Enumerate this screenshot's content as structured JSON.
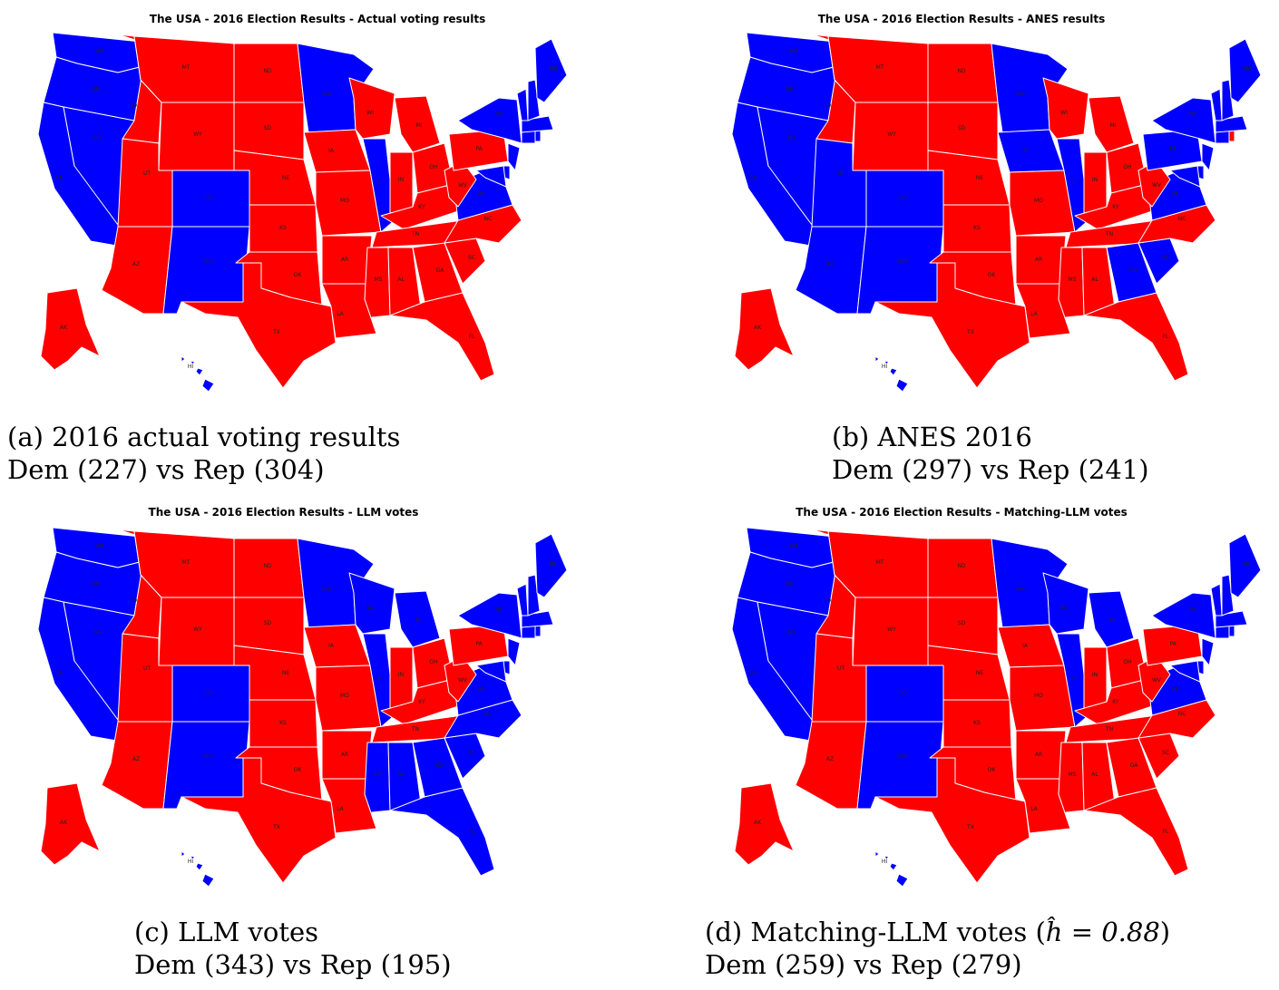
{
  "colors": {
    "dem": "#0000ff",
    "rep": "#ff0000",
    "border": "#ffffff"
  },
  "panels": [
    {
      "title": "The USA - 2016 Election Results - Actual voting results",
      "caption_line1": "(a) 2016 actual voting results",
      "caption_line2": "Dem (227) vs Rep (304)",
      "dem_votes": 227,
      "rep_votes": 304,
      "dem_states": [
        "WA",
        "OR",
        "CA",
        "NV",
        "CO",
        "NM",
        "MN",
        "IL",
        "VA",
        "NY",
        "ME",
        "VT",
        "NH",
        "MA",
        "CT",
        "RI",
        "NJ",
        "DE",
        "MD",
        "HI"
      ]
    },
    {
      "title": "The USA - 2016 Election Results - ANES results",
      "caption_line1": "(b) ANES 2016",
      "caption_line2": "Dem (297) vs Rep (241)",
      "dem_votes": 297,
      "rep_votes": 241,
      "dem_states": [
        "WA",
        "OR",
        "CA",
        "NV",
        "UT",
        "AZ",
        "CO",
        "NM",
        "MN",
        "IA",
        "IL",
        "VA",
        "GA",
        "SC",
        "NY",
        "PA",
        "ME",
        "VT",
        "NH",
        "MA",
        "CT",
        "NJ",
        "DE",
        "MD",
        "HI"
      ]
    },
    {
      "title": "The USA - 2016 Election Results - LLM votes",
      "caption_line1": "(c) LLM votes",
      "caption_line2": "Dem (343) vs Rep (195)",
      "dem_votes": 343,
      "rep_votes": 195,
      "dem_states": [
        "WA",
        "OR",
        "CA",
        "NV",
        "CO",
        "NM",
        "MN",
        "WI",
        "MI",
        "IL",
        "VA",
        "NC",
        "SC",
        "GA",
        "AL",
        "MS",
        "FL",
        "NY",
        "ME",
        "VT",
        "NH",
        "MA",
        "CT",
        "RI",
        "NJ",
        "DE",
        "MD",
        "HI"
      ]
    },
    {
      "title": "The USA - 2016 Election Results - Matching-LLM votes",
      "caption_line1": "(d) Matching-LLM votes",
      "caption_line2": "Dem (259) vs Rep (279)",
      "caption_math": "ĥ = 0.88",
      "dem_votes": 259,
      "rep_votes": 279,
      "dem_states": [
        "WA",
        "OR",
        "CA",
        "NV",
        "CO",
        "NM",
        "MN",
        "WI",
        "MI",
        "IL",
        "VA",
        "NY",
        "ME",
        "VT",
        "NH",
        "MA",
        "CT",
        "RI",
        "NJ",
        "DE",
        "MD",
        "HI"
      ]
    }
  ],
  "state_labels": [
    "WA",
    "OR",
    "CA",
    "NV",
    "ID",
    "MT",
    "WY",
    "UT",
    "AZ",
    "CO",
    "NM",
    "ND",
    "SD",
    "NE",
    "KS",
    "OK",
    "TX",
    "MN",
    "IA",
    "MO",
    "AR",
    "LA",
    "WI",
    "IL",
    "MI",
    "IN",
    "OH",
    "KY",
    "TN",
    "MS",
    "AL",
    "GA",
    "FL",
    "SC",
    "NC",
    "VA",
    "WV",
    "PA",
    "NY",
    "ME",
    "AK",
    "HI"
  ]
}
